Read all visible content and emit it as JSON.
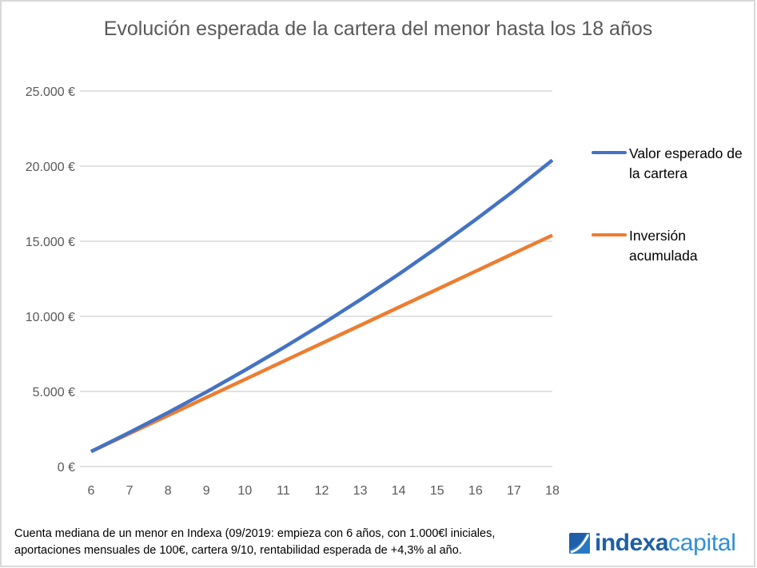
{
  "colors": {
    "series_blue": "#4472c4",
    "series_orange": "#ed7d31",
    "grid": "#d9d9d9",
    "tick_text": "#595959",
    "logo_dark": "#1f5ea8",
    "logo_light": "#2f8fd6"
  },
  "chart_data": {
    "type": "line",
    "title": "Evolución esperada de la cartera del menor hasta los 18 años",
    "xlabel": "",
    "ylabel": "",
    "x": [
      6,
      7,
      8,
      9,
      10,
      11,
      12,
      13,
      14,
      15,
      16,
      17,
      18
    ],
    "x_tick_labels": [
      "6",
      "7",
      "8",
      "9",
      "10",
      "11",
      "12",
      "13",
      "14",
      "15",
      "16",
      "17",
      "18"
    ],
    "ylim": [
      0,
      25000
    ],
    "y_ticks": [
      0,
      5000,
      10000,
      15000,
      20000,
      25000
    ],
    "y_tick_labels": [
      "0 €",
      "5.000 €",
      "10.000 €",
      "15.000 €",
      "20.000 €",
      "25.000 €"
    ],
    "grid": true,
    "legend_position": "right",
    "series": [
      {
        "name": "Valor esperado de la cartera",
        "color": "#4472c4",
        "values": [
          1000,
          2270,
          3590,
          4970,
          6410,
          7910,
          9470,
          11100,
          12800,
          14580,
          16430,
          18360,
          20400
        ]
      },
      {
        "name": "Inversión acumulada",
        "color": "#ed7d31",
        "values": [
          1000,
          2200,
          3400,
          4600,
          5800,
          7000,
          8200,
          9400,
          10600,
          11800,
          13000,
          14200,
          15400
        ]
      }
    ]
  },
  "legend": {
    "items": [
      {
        "line1": "Valor esperado de",
        "line2": "la cartera"
      },
      {
        "line1": "Inversión",
        "line2": "acumulada"
      }
    ]
  },
  "footnote": {
    "line1": "Cuenta mediana de un menor en Indexa (09/2019: empieza con 6 años, con 1.000€l iniciales,",
    "line2": "aportaciones mensuales de 100€, cartera 9/10, rentabilidad esperada de +4,3% al año."
  },
  "logo": {
    "bold_text": "indexa",
    "light_text": "capital",
    "icon": "indexa-logo-mark-icon"
  }
}
